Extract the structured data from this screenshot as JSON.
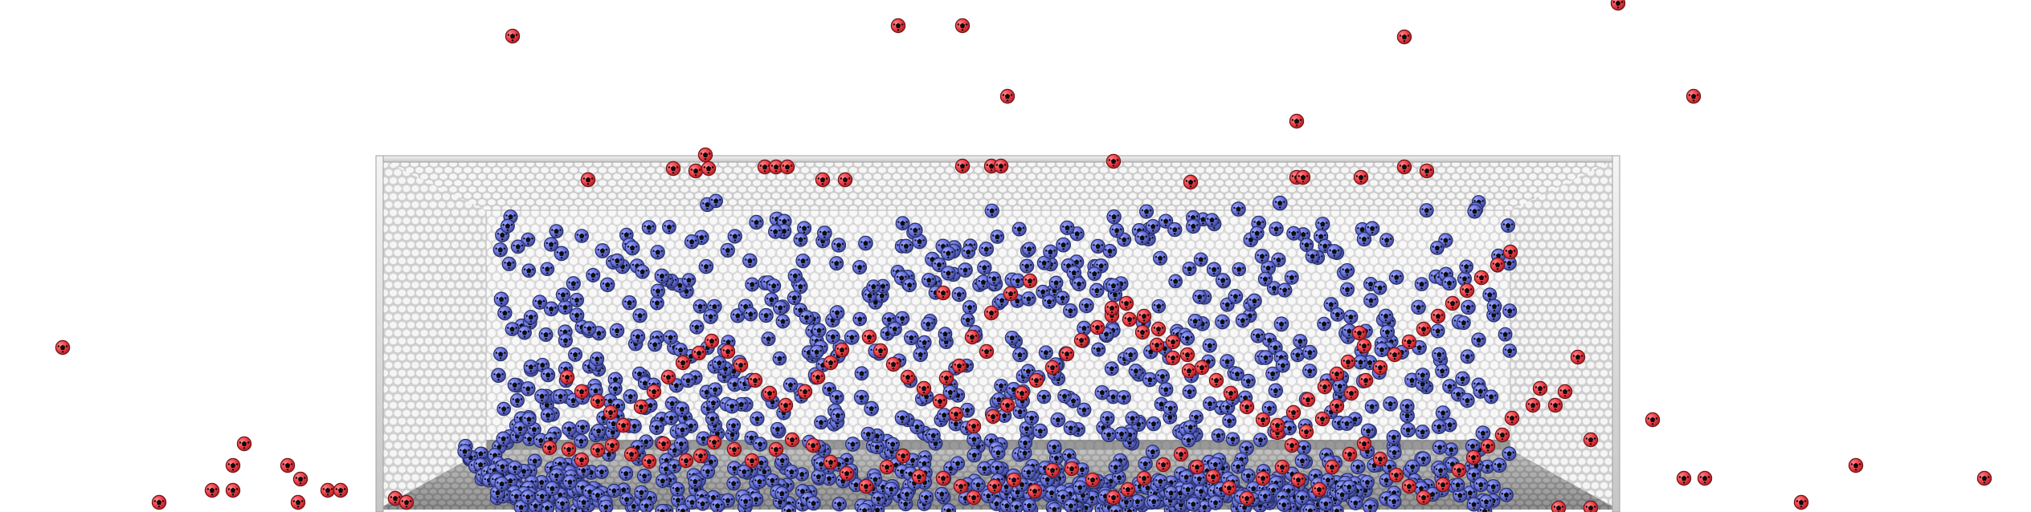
{
  "scene": {
    "type": "goal-net-with-balls",
    "colors": {
      "background": "#ffffff",
      "frame": "#d8d8d8",
      "frame_shadow": "#a9a9a9",
      "net_back": "#dcdcdc",
      "net_hole": "#f8f8f8",
      "net_side": "#d2d2d2",
      "floor_dark": "#6f6f6f",
      "floor_light": "#bdbdbd",
      "ball_blue_fill": "#6670d8",
      "ball_blue_edge": "#27306b",
      "ball_red_fill": "#f13d45",
      "ball_red_edge": "#70151a",
      "ball_patch": "#0b0b0b"
    }
  }
}
